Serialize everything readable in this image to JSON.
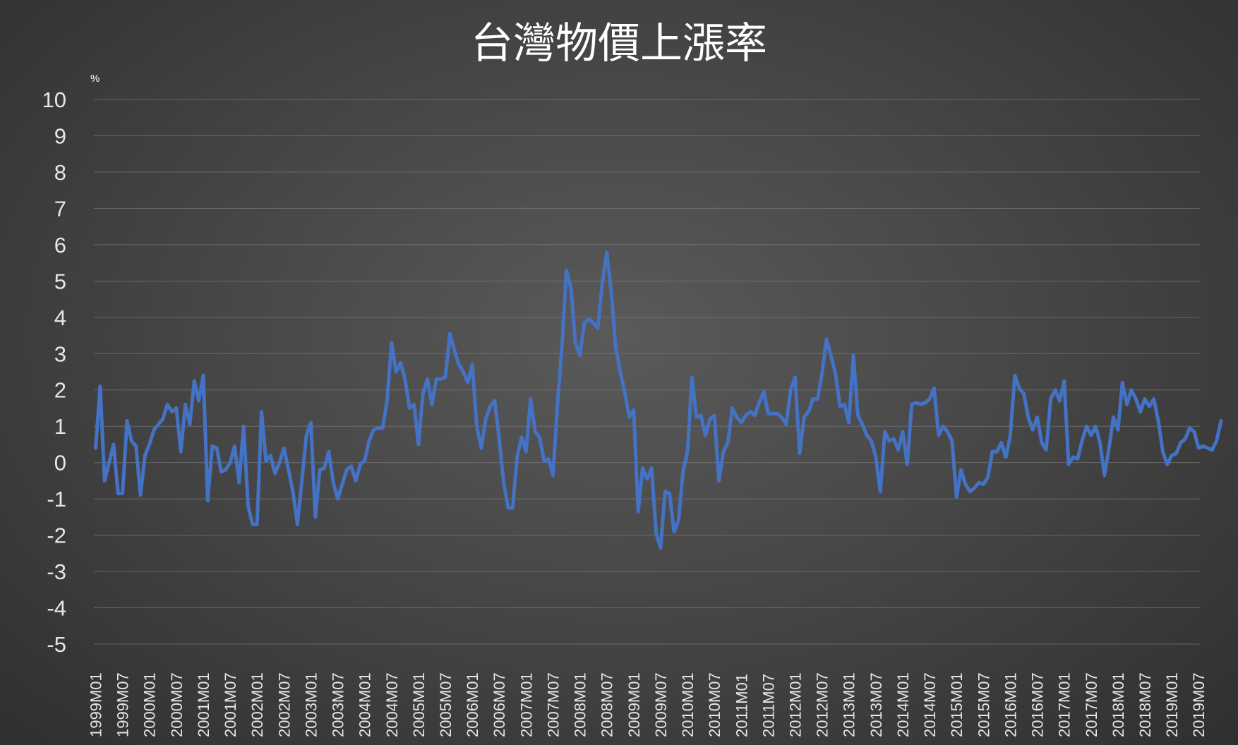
{
  "chart_data": {
    "type": "line",
    "title": "台灣物價上漲率",
    "ylabel": "%",
    "xlabel": "",
    "ylim": [
      -5,
      10
    ],
    "yticks": [
      10,
      9,
      8,
      7,
      6,
      5,
      4,
      3,
      2,
      1,
      0,
      -1,
      -2,
      -3,
      -4,
      -5
    ],
    "grid": true,
    "legend": "none",
    "x_tick_labels": [
      "1999M01",
      "1999M07",
      "2000M01",
      "2000M07",
      "2001M01",
      "2001M07",
      "2002M01",
      "2002M07",
      "2003M01",
      "2003M07",
      "2004M01",
      "2004M07",
      "2005M01",
      "2005M07",
      "2006M01",
      "2006M07",
      "2007M01",
      "2007M07",
      "2008M01",
      "2008M07",
      "2009M01",
      "2009M07",
      "2010M01",
      "2010M07",
      "2011M01",
      "2011M07",
      "2012M01",
      "2012M07",
      "2013M01",
      "2013M07",
      "2014M01",
      "2014M07",
      "2015M01",
      "2015M07",
      "2016M01",
      "2016M07",
      "2017M01",
      "2017M07",
      "2018M01",
      "2018M07",
      "2019M01",
      "2019M07"
    ],
    "x_start": "1999M01",
    "x_end": "2019M12",
    "series": [
      {
        "color": "#4472c4",
        "values": [
          0.4,
          2.1,
          -0.5,
          0.0,
          0.5,
          -0.85,
          -0.85,
          1.15,
          0.6,
          0.45,
          -0.9,
          0.2,
          0.5,
          0.9,
          1.05,
          1.2,
          1.6,
          1.4,
          1.5,
          0.3,
          1.6,
          1.05,
          2.25,
          1.7,
          2.4,
          -1.05,
          0.45,
          0.4,
          -0.25,
          -0.2,
          0.0,
          0.45,
          -0.55,
          1.0,
          -1.2,
          -1.7,
          -1.7,
          1.4,
          0.05,
          0.2,
          -0.3,
          0.0,
          0.4,
          -0.2,
          -0.8,
          -1.7,
          -0.5,
          0.75,
          1.1,
          -1.5,
          -0.2,
          -0.15,
          0.3,
          -0.55,
          -1.0,
          -0.6,
          -0.2,
          -0.1,
          -0.5,
          -0.05,
          0.05,
          0.6,
          0.9,
          0.95,
          0.95,
          1.7,
          3.3,
          2.5,
          2.75,
          2.3,
          1.5,
          1.6,
          0.5,
          1.9,
          2.3,
          1.6,
          2.3,
          2.3,
          2.35,
          3.55,
          3.1,
          2.7,
          2.5,
          2.2,
          2.7,
          1.0,
          0.4,
          1.2,
          1.55,
          1.7,
          0.65,
          -0.55,
          -1.25,
          -1.25,
          0.15,
          0.7,
          0.3,
          1.75,
          0.85,
          0.7,
          0.05,
          0.1,
          -0.35,
          1.6,
          3.2,
          5.3,
          4.8,
          3.3,
          2.95,
          3.85,
          3.95,
          3.85,
          3.7,
          4.95,
          5.8,
          4.7,
          3.15,
          2.5,
          1.95,
          1.25,
          1.45,
          -1.35,
          -0.15,
          -0.45,
          -0.15,
          -1.95,
          -2.35,
          -0.8,
          -0.85,
          -1.9,
          -1.6,
          -0.25,
          0.3,
          2.35,
          1.25,
          1.3,
          0.75,
          1.2,
          1.3,
          -0.5,
          0.3,
          0.55,
          1.5,
          1.25,
          1.1,
          1.3,
          1.4,
          1.3,
          1.65,
          1.95,
          1.35,
          1.35,
          1.35,
          1.25,
          1.05,
          2.0,
          2.35,
          0.25,
          1.25,
          1.4,
          1.75,
          1.75,
          2.45,
          3.4,
          2.95,
          2.45,
          1.55,
          1.6,
          1.1,
          2.95,
          1.3,
          1.05,
          0.75,
          0.6,
          0.15,
          -0.8,
          0.85,
          0.6,
          0.65,
          0.35,
          0.85,
          -0.05,
          1.6,
          1.65,
          1.6,
          1.65,
          1.75,
          2.05,
          0.75,
          1.0,
          0.85,
          0.6,
          -0.95,
          -0.2,
          -0.6,
          -0.8,
          -0.7,
          -0.55,
          -0.6,
          -0.4,
          0.3,
          0.3,
          0.55,
          0.15,
          0.75,
          2.4,
          2.05,
          1.9,
          1.25,
          0.9,
          1.25,
          0.55,
          0.35,
          1.75,
          2.0,
          1.7,
          2.25,
          -0.05,
          0.15,
          0.1,
          0.6,
          1.0,
          0.75,
          1.0,
          0.55,
          -0.35,
          0.4,
          1.25,
          0.9,
          2.2,
          1.6,
          2.0,
          1.75,
          1.4,
          1.75,
          1.55,
          1.75,
          1.15,
          0.3,
          -0.05,
          0.2,
          0.25,
          0.55,
          0.65,
          0.95,
          0.85,
          0.4,
          0.45,
          0.4,
          0.35,
          0.6,
          1.15
        ]
      }
    ]
  }
}
